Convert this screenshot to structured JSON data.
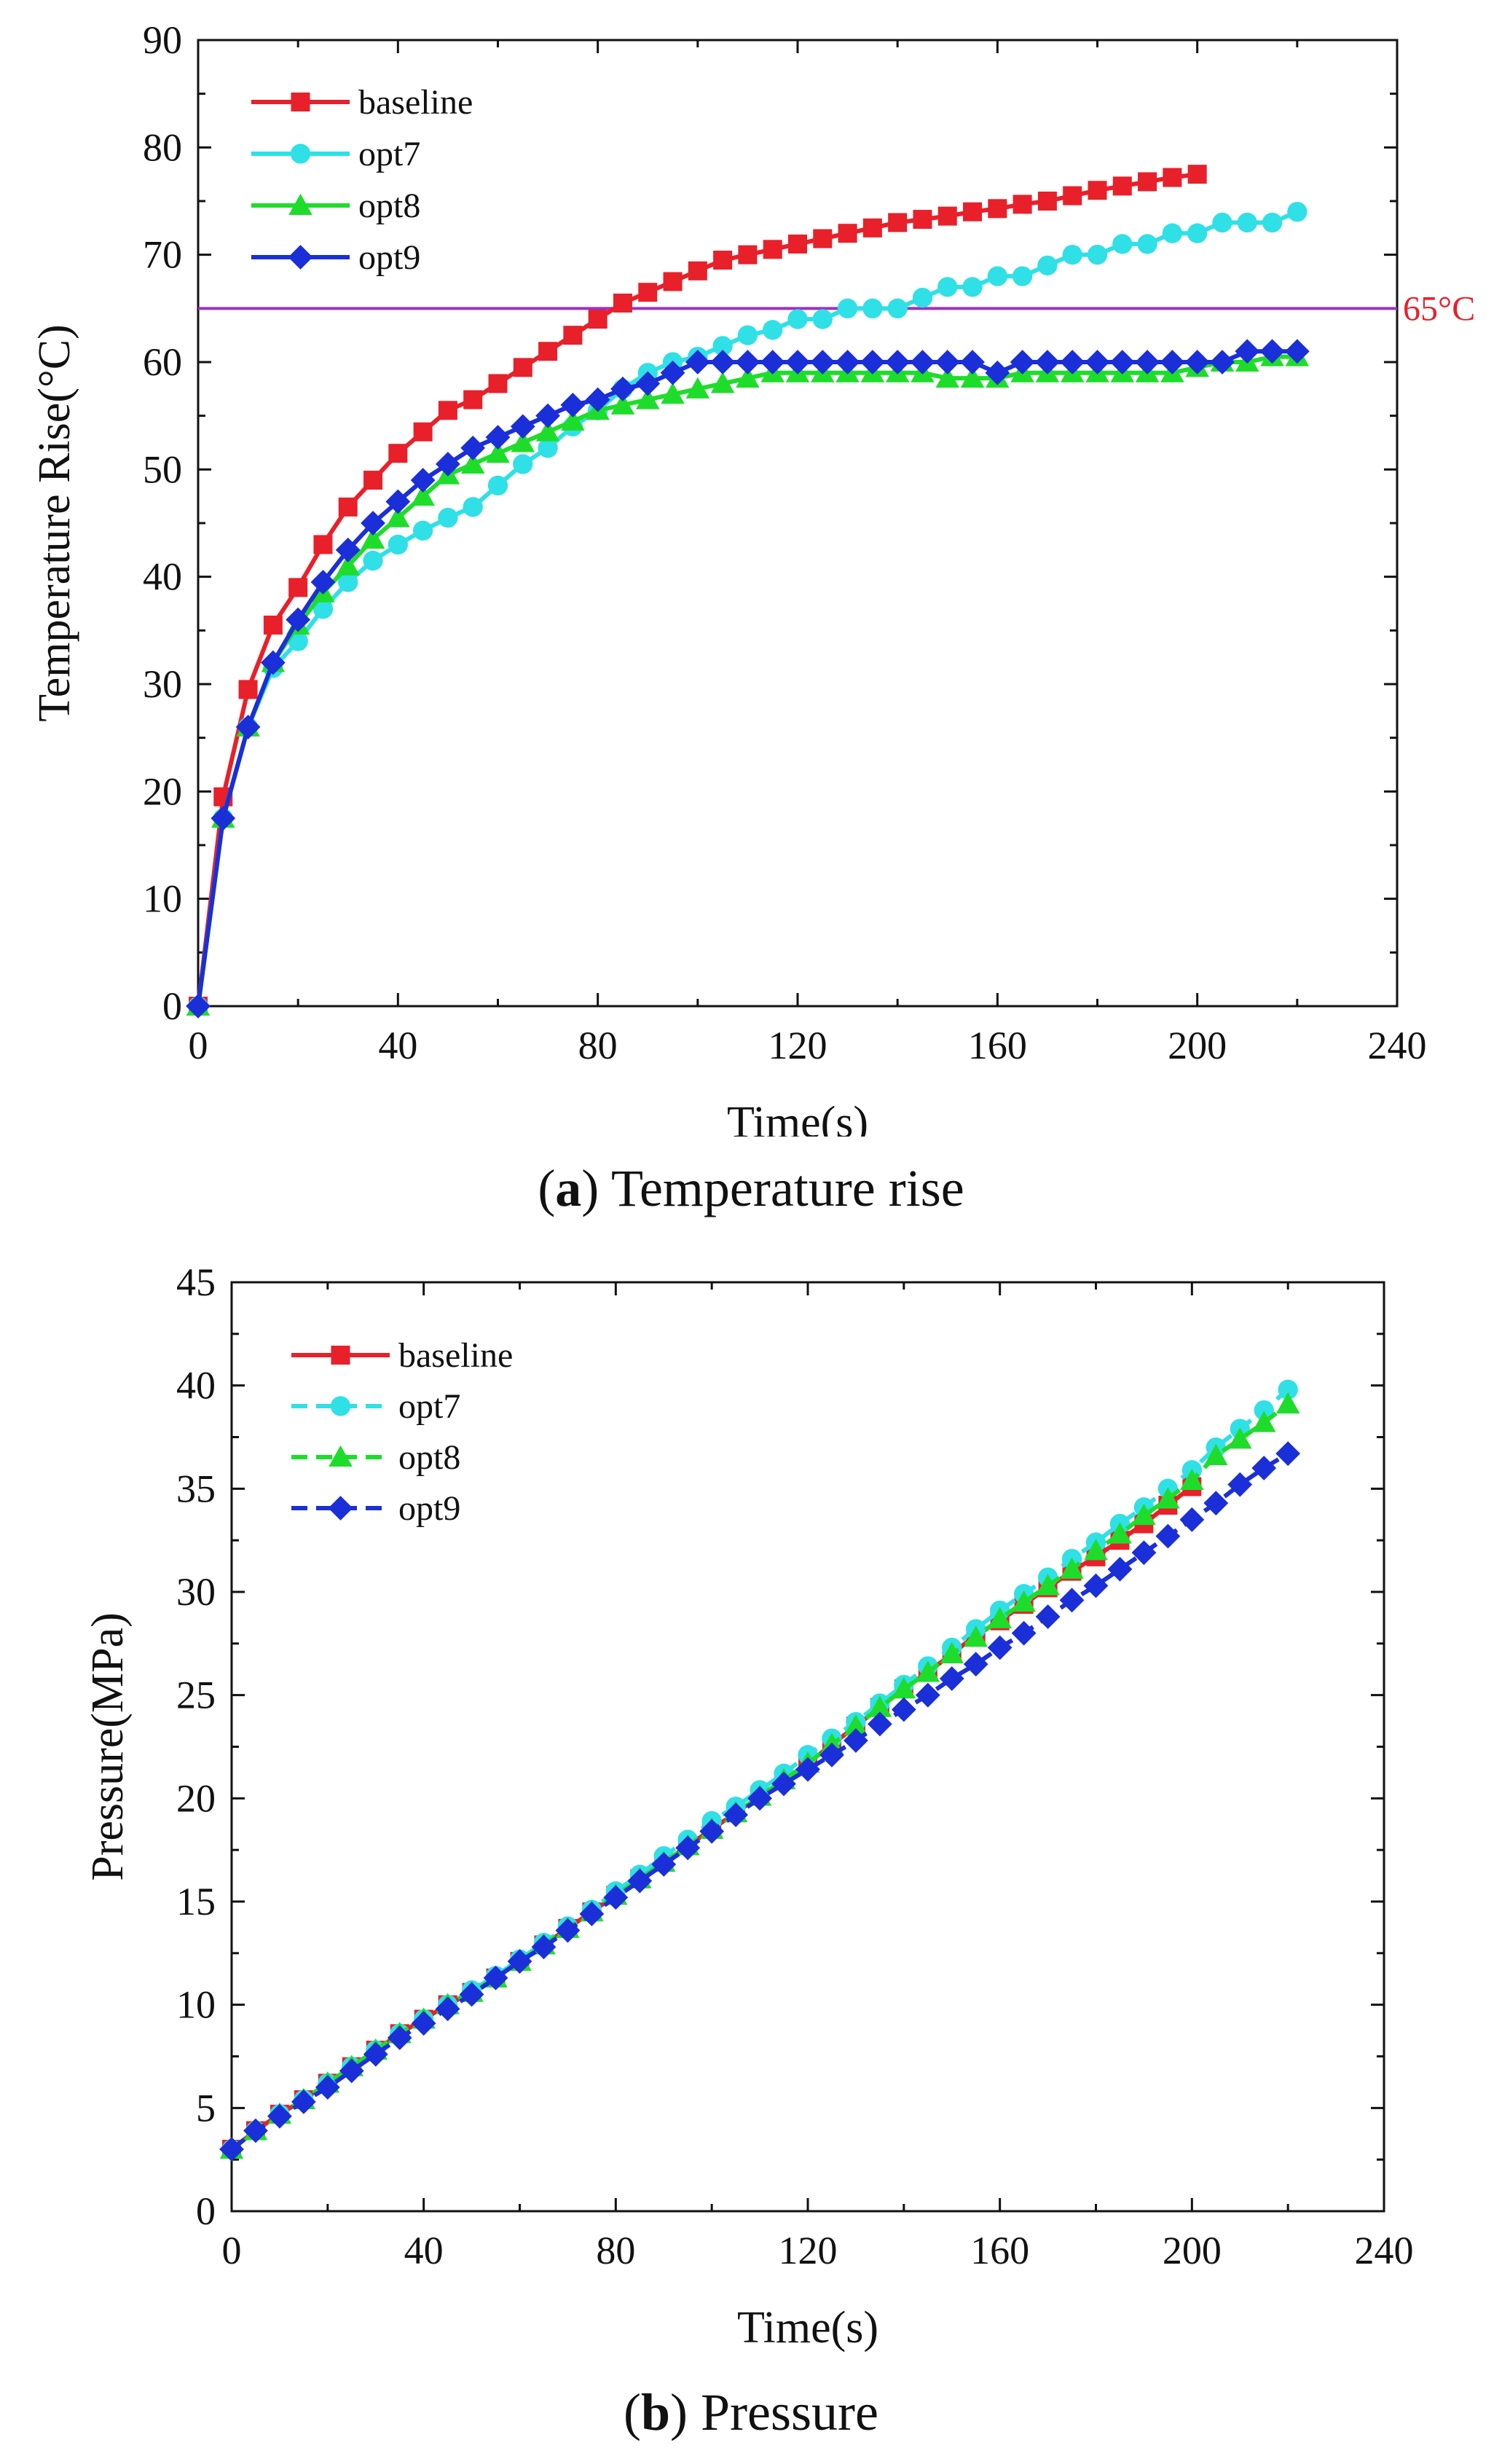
{
  "chart_data": [
    {
      "type": "line",
      "id": "a",
      "caption_letter": "a",
      "caption_text": "Temperature rise",
      "xlabel": "Time(s)",
      "ylabel": "Temperature Rise(°C)",
      "xlim": [
        0,
        240
      ],
      "ylim": [
        0,
        90
      ],
      "xticks": [
        0,
        40,
        80,
        120,
        160,
        200,
        240
      ],
      "yticks": [
        0,
        10,
        20,
        30,
        40,
        50,
        60,
        70,
        80,
        90
      ],
      "legend_position": "top-left",
      "reference_line": {
        "y": 65,
        "label": "65°C",
        "color": "#9b30c8",
        "label_color": "#e8202a"
      },
      "series": [
        {
          "name": "baseline",
          "color": "#e8202a",
          "marker": "square",
          "dashed": false,
          "x": [
            0,
            5,
            10,
            15,
            20,
            25,
            30,
            35,
            40,
            45,
            50,
            55,
            60,
            65,
            70,
            75,
            80,
            85,
            90,
            95,
            100,
            105,
            110,
            115,
            120,
            125,
            130,
            135,
            140,
            145,
            150,
            155,
            160,
            165,
            170,
            175,
            180,
            185,
            190,
            195,
            200
          ],
          "y": [
            0,
            19.5,
            29.5,
            35.5,
            39,
            43,
            46.5,
            49,
            51.5,
            53.5,
            55.5,
            56.5,
            58,
            59.5,
            61,
            62.5,
            64,
            65.5,
            66.5,
            67.5,
            68.5,
            69.5,
            70,
            70.5,
            71,
            71.5,
            72,
            72.5,
            73,
            73.3,
            73.6,
            74,
            74.3,
            74.7,
            75,
            75.5,
            76,
            76.4,
            76.8,
            77.2,
            77.5
          ]
        },
        {
          "name": "opt7",
          "color": "#2fe0e6",
          "marker": "circle",
          "dashed": false,
          "x": [
            0,
            5,
            10,
            15,
            20,
            25,
            30,
            35,
            40,
            45,
            50,
            55,
            60,
            65,
            70,
            75,
            80,
            85,
            90,
            95,
            100,
            105,
            110,
            115,
            120,
            125,
            130,
            135,
            140,
            145,
            150,
            155,
            160,
            165,
            170,
            175,
            180,
            185,
            190,
            195,
            200,
            205,
            210,
            215,
            220
          ],
          "y": [
            0,
            17.5,
            26,
            31.5,
            34,
            37,
            39.5,
            41.5,
            43,
            44.3,
            45.5,
            46.5,
            48.5,
            50.5,
            52,
            54,
            55.5,
            57.5,
            59,
            60,
            60.5,
            61.5,
            62.5,
            63,
            64,
            64,
            65,
            65,
            65,
            66,
            67,
            67,
            68,
            68,
            69,
            70,
            70,
            71,
            71,
            72,
            72,
            73,
            73,
            73,
            74
          ]
        },
        {
          "name": "opt8",
          "color": "#1edd2a",
          "marker": "triangle",
          "dashed": false,
          "x": [
            0,
            5,
            10,
            15,
            20,
            25,
            30,
            35,
            40,
            45,
            50,
            55,
            60,
            65,
            70,
            75,
            80,
            85,
            90,
            95,
            100,
            105,
            110,
            115,
            120,
            125,
            130,
            135,
            140,
            145,
            150,
            155,
            160,
            165,
            170,
            175,
            180,
            185,
            190,
            195,
            200,
            205,
            210,
            215,
            220
          ],
          "y": [
            0,
            17.5,
            26,
            32,
            35.5,
            38.5,
            41,
            43.5,
            45.5,
            47.5,
            49.5,
            50.5,
            51.5,
            52.5,
            53.5,
            54.5,
            55.5,
            56,
            56.5,
            57,
            57.5,
            58,
            58.5,
            59,
            59,
            59,
            59,
            59,
            59,
            59,
            58.5,
            58.5,
            58.5,
            59,
            59,
            59,
            59,
            59,
            59,
            59,
            59.5,
            60,
            60,
            60.5,
            60.5
          ]
        },
        {
          "name": "opt9",
          "color": "#1a2fd8",
          "marker": "diamond",
          "dashed": false,
          "x": [
            0,
            5,
            10,
            15,
            20,
            25,
            30,
            35,
            40,
            45,
            50,
            55,
            60,
            65,
            70,
            75,
            80,
            85,
            90,
            95,
            100,
            105,
            110,
            115,
            120,
            125,
            130,
            135,
            140,
            145,
            150,
            155,
            160,
            165,
            170,
            175,
            180,
            185,
            190,
            195,
            200,
            205,
            210,
            215,
            220
          ],
          "y": [
            0,
            17.5,
            26,
            32,
            36,
            39.5,
            42.5,
            45,
            47,
            49,
            50.5,
            52,
            53,
            54,
            55,
            56,
            56.5,
            57.5,
            58,
            59,
            60,
            60,
            60,
            60,
            60,
            60,
            60,
            60,
            60,
            60,
            60,
            60,
            59,
            60,
            60,
            60,
            60,
            60,
            60,
            60,
            60,
            60,
            61,
            61,
            61
          ]
        }
      ]
    },
    {
      "type": "line",
      "id": "b",
      "caption_letter": "b",
      "caption_text": "Pressure",
      "xlabel": "Time(s)",
      "ylabel": "Pressure(MPa)",
      "xlim": [
        0,
        240
      ],
      "ylim": [
        0,
        45
      ],
      "xticks": [
        0,
        40,
        80,
        120,
        160,
        200,
        240
      ],
      "yticks": [
        0,
        5,
        10,
        15,
        20,
        25,
        30,
        35,
        40,
        45
      ],
      "legend_position": "top-left",
      "series": [
        {
          "name": "baseline",
          "color": "#e8202a",
          "marker": "square",
          "dashed": false,
          "x": [
            0,
            5,
            10,
            15,
            20,
            25,
            30,
            35,
            40,
            45,
            50,
            55,
            60,
            65,
            70,
            75,
            80,
            85,
            90,
            95,
            100,
            105,
            110,
            115,
            120,
            125,
            130,
            135,
            140,
            145,
            150,
            155,
            160,
            165,
            170,
            175,
            180,
            185,
            190,
            195,
            200
          ],
          "y": [
            3,
            3.9,
            4.7,
            5.4,
            6.2,
            7,
            7.8,
            8.6,
            9.3,
            10,
            10.6,
            11.3,
            12.1,
            12.9,
            13.7,
            14.5,
            15.3,
            16.1,
            16.9,
            17.7,
            18.5,
            19.3,
            20.1,
            20.9,
            21.7,
            22.6,
            23.5,
            24.4,
            25.3,
            26.1,
            27,
            27.9,
            28.6,
            29.4,
            30.2,
            31,
            31.7,
            32.5,
            33.3,
            34.2,
            35.1
          ]
        },
        {
          "name": "opt7",
          "color": "#2fe0e6",
          "marker": "circle",
          "dashed": true,
          "x": [
            0,
            5,
            10,
            15,
            20,
            25,
            30,
            35,
            40,
            45,
            50,
            55,
            60,
            65,
            70,
            75,
            80,
            85,
            90,
            95,
            100,
            105,
            110,
            115,
            120,
            125,
            130,
            135,
            140,
            145,
            150,
            155,
            160,
            165,
            170,
            175,
            180,
            185,
            190,
            195,
            200,
            205,
            210,
            215,
            220
          ],
          "y": [
            3,
            3.9,
            4.7,
            5.4,
            6.2,
            7,
            7.8,
            8.6,
            9.3,
            10,
            10.7,
            11.4,
            12.2,
            13,
            13.8,
            14.6,
            15.5,
            16.3,
            17.2,
            18,
            18.9,
            19.6,
            20.4,
            21.2,
            22.1,
            22.9,
            23.7,
            24.6,
            25.5,
            26.4,
            27.3,
            28.2,
            29.1,
            29.9,
            30.7,
            31.6,
            32.4,
            33.3,
            34.1,
            35,
            35.9,
            37,
            37.9,
            38.8,
            39.8
          ]
        },
        {
          "name": "opt8",
          "color": "#1edd2a",
          "marker": "triangle",
          "dashed": true,
          "x": [
            0,
            5,
            10,
            15,
            20,
            25,
            30,
            35,
            40,
            45,
            50,
            55,
            60,
            65,
            70,
            75,
            80,
            85,
            90,
            95,
            100,
            105,
            110,
            115,
            120,
            125,
            130,
            135,
            140,
            145,
            150,
            155,
            160,
            165,
            170,
            175,
            180,
            185,
            190,
            195,
            200,
            205,
            210,
            215,
            220
          ],
          "y": [
            3,
            3.9,
            4.7,
            5.4,
            6.2,
            7,
            7.8,
            8.6,
            9.3,
            10,
            10.6,
            11.3,
            12.1,
            12.9,
            13.7,
            14.5,
            15.3,
            16.1,
            16.9,
            17.7,
            18.5,
            19.3,
            20.1,
            20.9,
            21.7,
            22.6,
            23.5,
            24.4,
            25.3,
            26.1,
            27,
            27.8,
            28.7,
            29.5,
            30.3,
            31.1,
            32,
            32.8,
            33.7,
            34.5,
            35.4,
            36.6,
            37.4,
            38.2,
            39.1
          ]
        },
        {
          "name": "opt9",
          "color": "#1a2fd8",
          "marker": "diamond",
          "dashed": true,
          "x": [
            0,
            5,
            10,
            15,
            20,
            25,
            30,
            35,
            40,
            45,
            50,
            55,
            60,
            65,
            70,
            75,
            80,
            85,
            90,
            95,
            100,
            105,
            110,
            115,
            120,
            125,
            130,
            135,
            140,
            145,
            150,
            155,
            160,
            165,
            170,
            175,
            180,
            185,
            190,
            195,
            200,
            205,
            210,
            215,
            220
          ],
          "y": [
            3,
            3.9,
            4.6,
            5.3,
            6,
            6.8,
            7.6,
            8.4,
            9.1,
            9.8,
            10.5,
            11.3,
            12.1,
            12.8,
            13.6,
            14.4,
            15.2,
            16,
            16.8,
            17.6,
            18.4,
            19.2,
            20,
            20.7,
            21.4,
            22.1,
            22.8,
            23.6,
            24.3,
            25,
            25.8,
            26.5,
            27.3,
            28,
            28.8,
            29.6,
            30.3,
            31.1,
            31.9,
            32.7,
            33.5,
            34.3,
            35.2,
            36,
            36.7
          ]
        }
      ]
    }
  ]
}
